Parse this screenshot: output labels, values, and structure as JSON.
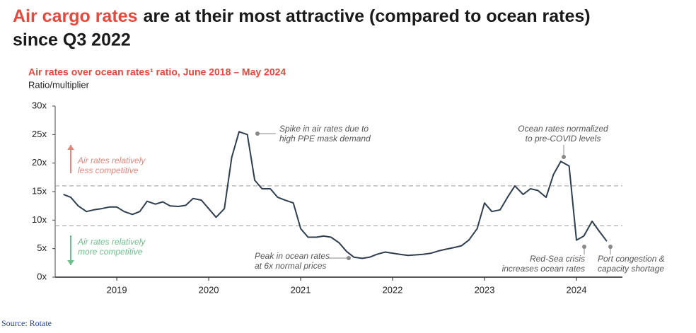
{
  "chart_data": {
    "type": "line",
    "title_highlight": "Air cargo rates",
    "title_rest": "are at their most attractive (compared to ocean rates)",
    "title_line2": "since Q3 2022",
    "subtitle": "Air rates over ocean rates¹ ratio, June 2018 – May 2024",
    "y_label": "Ratio/multiplier",
    "x": [
      2018.42,
      2018.5,
      2018.58,
      2018.67,
      2018.75,
      2018.83,
      2018.92,
      2019,
      2019.08,
      2019.17,
      2019.25,
      2019.33,
      2019.42,
      2019.5,
      2019.58,
      2019.67,
      2019.75,
      2019.83,
      2019.92,
      2020,
      2020.08,
      2020.17,
      2020.25,
      2020.33,
      2020.42,
      2020.5,
      2020.58,
      2020.67,
      2020.75,
      2020.83,
      2020.92,
      2021,
      2021.08,
      2021.17,
      2021.25,
      2021.33,
      2021.42,
      2021.5,
      2021.58,
      2021.67,
      2021.75,
      2021.83,
      2021.92,
      2022,
      2022.08,
      2022.17,
      2022.25,
      2022.33,
      2022.42,
      2022.5,
      2022.58,
      2022.67,
      2022.75,
      2022.83,
      2022.92,
      2023,
      2023.08,
      2023.17,
      2023.25,
      2023.33,
      2023.42,
      2023.5,
      2023.58,
      2023.67,
      2023.75,
      2023.83,
      2023.92,
      2024,
      2024.08,
      2024.17,
      2024.25,
      2024.33
    ],
    "series": [
      {
        "name": "Air/ocean ratio",
        "color": "#2f3e4e",
        "values": [
          14.5,
          14,
          12.5,
          11.5,
          11.8,
          12,
          12.3,
          12.3,
          11.5,
          11,
          11.5,
          13.3,
          12.8,
          13.2,
          12.5,
          12.4,
          12.6,
          13.8,
          13.5,
          12,
          10.5,
          12,
          21,
          25.5,
          25,
          17,
          15.5,
          15.5,
          14,
          13.5,
          13,
          8.5,
          7,
          7,
          7.2,
          7,
          6,
          4.5,
          3.5,
          3.3,
          3.5,
          4,
          4.4,
          4.2,
          4,
          3.8,
          3.9,
          4,
          4.2,
          4.6,
          4.9,
          5.2,
          5.5,
          6.5,
          8.5,
          13,
          11.5,
          11.8,
          14,
          16,
          14.5,
          15.5,
          15.2,
          14,
          18,
          20.3,
          19.5,
          6.5,
          7.2,
          9.8,
          8,
          6.3
        ]
      }
    ],
    "xlim": [
      2018.33,
      2024.5
    ],
    "xticks": [
      2019,
      2020,
      2021,
      2022,
      2023,
      2024
    ],
    "ylim": [
      0,
      30
    ],
    "yticks": [
      {
        "value": 0,
        "label": "0x"
      },
      {
        "value": 5,
        "label": "5x"
      },
      {
        "value": 10,
        "label": "10x"
      },
      {
        "value": 15,
        "label": "15x"
      },
      {
        "value": 20,
        "label": "20x"
      },
      {
        "value": 25,
        "label": "25x"
      },
      {
        "value": 30,
        "label": "30x"
      }
    ],
    "reference_lines": [
      16,
      9
    ],
    "zones": [
      {
        "lines": [
          "Air rates relatively",
          "less competitive"
        ],
        "color": "#e8857a"
      },
      {
        "lines": [
          "Air rates relatively",
          "more competitive"
        ],
        "color": "#6cc08b"
      }
    ],
    "annotations": [
      {
        "lines": [
          "Spike in air rates due to",
          "high PPE mask demand"
        ]
      },
      {
        "lines": [
          "Ocean rates normalized",
          "to pre-COVID levels"
        ]
      },
      {
        "lines": [
          "Peak in ocean rates",
          "at 6x normal prices"
        ]
      },
      {
        "lines": [
          "Red-Sea crisis",
          "increases ocean rates"
        ]
      },
      {
        "lines": [
          "Port congestion &",
          "capacity shortage"
        ]
      }
    ],
    "source": "Source: Rotate"
  }
}
